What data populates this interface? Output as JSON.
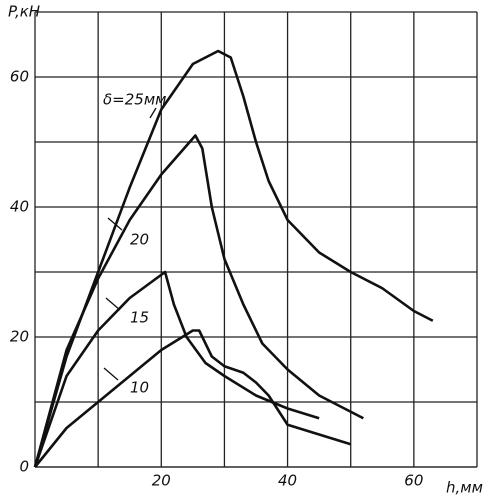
{
  "chart_data": {
    "type": "line",
    "y_label": "P,кН",
    "x_label": "h,мм",
    "xlim": [
      0,
      70
    ],
    "ylim": [
      0,
      70
    ],
    "xticks": [
      20,
      40,
      60
    ],
    "yticks": [
      0,
      20,
      40,
      60
    ],
    "x_minor_grid": [
      10,
      30,
      50,
      70
    ],
    "y_minor_grid": [
      10,
      30,
      50,
      70
    ],
    "grid": true,
    "series": [
      {
        "name": "δ=25мм",
        "color": "#111111",
        "x": [
          0,
          5,
          10,
          15,
          20,
          25,
          29,
          31,
          33,
          35,
          37,
          40,
          45,
          50,
          55,
          60,
          63
        ],
        "values": [
          0,
          17,
          30,
          43,
          55,
          62,
          64,
          63,
          57,
          50,
          44,
          38,
          33,
          30,
          27.5,
          24,
          22.5
        ]
      },
      {
        "name": "20",
        "color": "#111111",
        "x": [
          0,
          5,
          10,
          15,
          20,
          25.4,
          26.5,
          28,
          30,
          33,
          36,
          40,
          45,
          50,
          52
        ],
        "values": [
          0,
          18,
          29,
          38,
          45,
          51,
          49,
          40,
          32,
          25,
          19,
          15,
          11,
          8.5,
          7.5
        ]
      },
      {
        "name": "15",
        "color": "#111111",
        "x": [
          0,
          5,
          10,
          15,
          20.6,
          22,
          24,
          27,
          30,
          35,
          40,
          45
        ],
        "values": [
          0,
          14,
          21,
          26,
          30,
          25,
          20,
          16,
          14,
          11,
          9,
          7.5
        ]
      },
      {
        "name": "10",
        "color": "#111111",
        "x": [
          0,
          5,
          10,
          15,
          20,
          25,
          26,
          28,
          30,
          33,
          35,
          37,
          40,
          45,
          50
        ],
        "values": [
          0,
          6,
          10,
          14,
          18,
          21,
          21,
          17,
          15.5,
          14.5,
          13,
          11,
          6.5,
          5,
          3.5
        ]
      }
    ]
  }
}
